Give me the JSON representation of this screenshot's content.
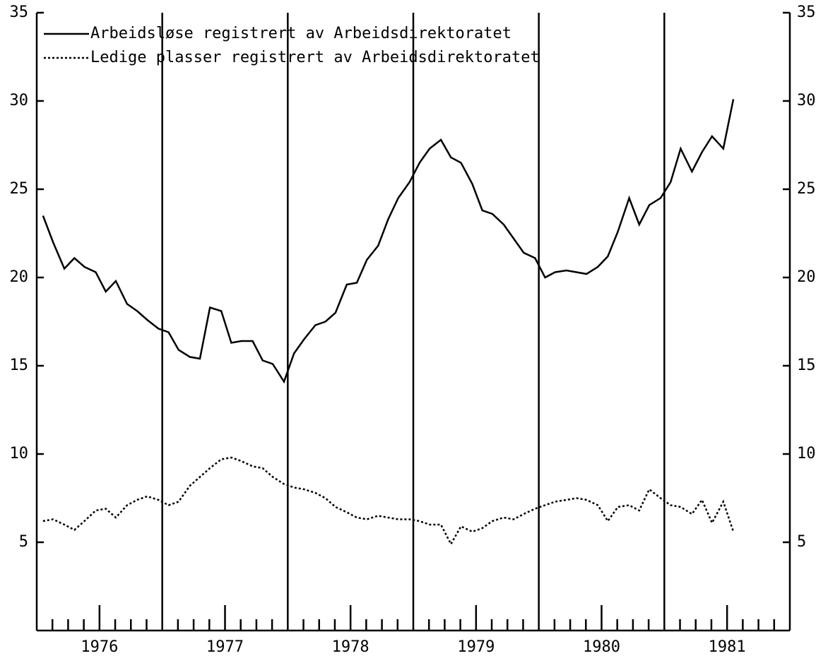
{
  "chart_data": {
    "type": "line",
    "x": [
      1976.05,
      1976.13,
      1976.22,
      1976.3,
      1976.38,
      1976.47,
      1976.55,
      1976.63,
      1976.72,
      1976.8,
      1976.88,
      1976.97,
      1977.05,
      1977.13,
      1977.22,
      1977.3,
      1977.38,
      1977.47,
      1977.55,
      1977.63,
      1977.72,
      1977.8,
      1977.88,
      1977.97,
      1978.05,
      1978.13,
      1978.22,
      1978.3,
      1978.38,
      1978.47,
      1978.55,
      1978.63,
      1978.72,
      1978.8,
      1978.88,
      1978.97,
      1979.05,
      1979.13,
      1979.22,
      1979.3,
      1979.38,
      1979.47,
      1979.55,
      1979.63,
      1979.72,
      1979.8,
      1979.88,
      1979.97,
      1980.05,
      1980.13,
      1980.22,
      1980.3,
      1980.38,
      1980.47,
      1980.55,
      1980.63,
      1980.72,
      1980.8,
      1980.88,
      1980.97,
      1981.05,
      1981.13,
      1981.22,
      1981.3,
      1981.38,
      1981.47,
      1981.55
    ],
    "series": [
      {
        "name": "Arbeidsløse registrert av Arbeidsdirektoratet",
        "color": "#000000",
        "dash": "none",
        "values": [
          23.5,
          22.0,
          20.5,
          21.1,
          20.6,
          20.3,
          19.2,
          19.8,
          18.5,
          18.1,
          17.6,
          17.1,
          16.9,
          15.9,
          15.5,
          15.4,
          18.3,
          18.1,
          16.3,
          16.4,
          16.4,
          15.3,
          15.1,
          14.1,
          15.7,
          16.5,
          17.3,
          17.5,
          18.0,
          19.6,
          19.7,
          21.0,
          21.8,
          23.3,
          24.5,
          25.4,
          26.5,
          27.3,
          27.8,
          26.8,
          26.5,
          25.3,
          23.8,
          23.6,
          23.0,
          22.2,
          21.4,
          21.1,
          20.0,
          20.3,
          20.4,
          20.3,
          20.2,
          20.6,
          21.2,
          22.6,
          24.5,
          23.0,
          24.1,
          24.5,
          25.4,
          27.3,
          26.0,
          27.1,
          28.0,
          27.3,
          30.1
        ]
      },
      {
        "name": "Ledige plasser registrert av Arbeidsdirektoratet",
        "color": "#000000",
        "dash": "3 3",
        "values": [
          6.2,
          6.3,
          6.0,
          5.7,
          6.2,
          6.8,
          6.9,
          6.4,
          7.1,
          7.4,
          7.6,
          7.4,
          7.1,
          7.3,
          8.2,
          8.7,
          9.2,
          9.7,
          9.8,
          9.6,
          9.3,
          9.2,
          8.7,
          8.3,
          8.1,
          8.0,
          7.8,
          7.5,
          7.0,
          6.7,
          6.4,
          6.3,
          6.5,
          6.4,
          6.3,
          6.3,
          6.2,
          6.0,
          6.0,
          4.9,
          5.9,
          5.6,
          5.8,
          6.2,
          6.4,
          6.3,
          6.6,
          6.9,
          7.1,
          7.3,
          7.4,
          7.5,
          7.4,
          7.1,
          6.2,
          7.0,
          7.1,
          6.8,
          8.0,
          7.5,
          7.1,
          7.0,
          6.6,
          7.4,
          6.1,
          7.3,
          5.6
        ]
      }
    ],
    "xlim": [
      1976,
      1982
    ],
    "xticks": [
      {
        "value": 1976.5,
        "label": "1976"
      },
      {
        "value": 1977.5,
        "label": "1977"
      },
      {
        "value": 1978.5,
        "label": "1978"
      },
      {
        "value": 1979.5,
        "label": "1979"
      },
      {
        "value": 1980.5,
        "label": "1980"
      },
      {
        "value": 1981.5,
        "label": "1981"
      }
    ],
    "xminorticks": [
      1976.125,
      1976.25,
      1976.375,
      1976.625,
      1976.75,
      1976.875,
      1977.125,
      1977.25,
      1977.375,
      1977.625,
      1977.75,
      1977.875,
      1978.125,
      1978.25,
      1978.375,
      1978.625,
      1978.75,
      1978.875,
      1979.125,
      1979.25,
      1979.375,
      1979.625,
      1979.75,
      1979.875,
      1980.125,
      1980.25,
      1980.375,
      1980.625,
      1980.75,
      1980.875,
      1981.125,
      1981.25,
      1981.375,
      1981.625,
      1981.75,
      1981.875
    ],
    "vlines": [
      1977,
      1978,
      1979,
      1980,
      1981
    ],
    "ylim": [
      0,
      35
    ],
    "yticks": [
      5,
      10,
      15,
      20,
      25,
      30,
      35
    ],
    "legend": "upper left"
  }
}
